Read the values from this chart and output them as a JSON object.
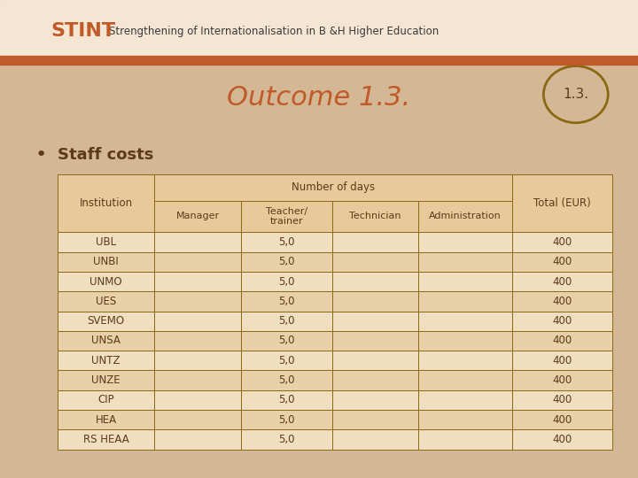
{
  "title": "Outcome 1.3.",
  "title_color": "#C05A28",
  "badge_text": "1.3.",
  "bullet_text": "Staff costs",
  "slide_bg": "#D4B896",
  "table_header_bg": "#E8C99A",
  "table_row_bg_odd": "#F0DEC0",
  "table_row_bg_even": "#E8D0A8",
  "table_border_color": "#8B6914",
  "header_top_text": "Strengthening of Internationalisation in B &H Higher Education",
  "header_bar_color": "#C05A28",
  "header_bg_color": "#F5E6D3",
  "institutions": [
    "UBL",
    "UNBI",
    "UNMO",
    "UES",
    "SVEMO",
    "UNSA",
    "UNTZ",
    "UNZE",
    "CIP",
    "HEA",
    "RS HEAA"
  ],
  "teacher_values": [
    "5,0",
    "5,0",
    "5,0",
    "5,0",
    "5,0",
    "5,0",
    "5,0",
    "5,0",
    "5,0",
    "5,0",
    "5,0"
  ],
  "total_values": [
    "400",
    "400",
    "400",
    "400",
    "400",
    "400",
    "400",
    "400",
    "400",
    "400",
    "400"
  ],
  "num_of_days_label": "Number of days",
  "font_color": "#5C3A1A",
  "title_fontsize": 22,
  "table_fontsize": 9
}
